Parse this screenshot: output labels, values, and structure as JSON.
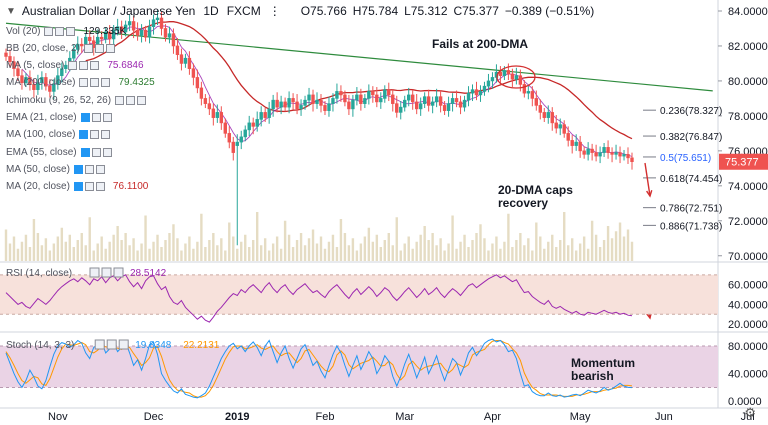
{
  "header": {
    "symbol": "Australian Dollar / Japanese Yen",
    "interval": "1D",
    "exchange": "FXCM",
    "open": "O75.766",
    "high": "H75.784",
    "low": "L75.312",
    "close": "C75.377",
    "change": "−0.389 (−0.51%)",
    "collapse_icon": "chevron-down-icon"
  },
  "indicators": [
    {
      "label": "Vol (20)",
      "value": "129.335K",
      "value_color": "#131722"
    },
    {
      "label": "BB (20, close, 2)",
      "value": "",
      "value_color": "#131722"
    },
    {
      "label": "MA (5, close)",
      "value": "75.6846",
      "value_color": "#9c27b0"
    },
    {
      "label": "MA (200, close)",
      "value": "79.4325",
      "value_color": "#2e7d32"
    },
    {
      "label": "Ichimoku (9, 26, 52, 26)",
      "value": "",
      "value_color": "#131722"
    },
    {
      "label": "EMA (21, close)",
      "value": "",
      "value_color": "#131722"
    },
    {
      "label": "MA (100, close)",
      "value": "",
      "value_color": "#131722"
    },
    {
      "label": "EMA (55, close)",
      "value": "",
      "value_color": "#131722"
    },
    {
      "label": "MA (50, close)",
      "value": "",
      "value_color": "#131722"
    },
    {
      "label": "MA (20, close)",
      "value": "76.1100",
      "value_color": "#c62828"
    }
  ],
  "annotations": {
    "fails_200dma": "Fails at 200-DMA",
    "dma20_caps_line1": "20-DMA caps",
    "dma20_caps_line2": "recovery",
    "momentum_line1": "Momentum",
    "momentum_line2": "bearish"
  },
  "colors": {
    "up": "#26a69a",
    "down": "#ef5350",
    "candle_up_fill": "#ffffff",
    "candle_up_border": "#26a69a",
    "ma20": "#c62828",
    "ma200": "#2e8b3d",
    "ma5": "#9c27b0",
    "rsi_line": "#9c27b0",
    "rsi_band": "#f7e1db",
    "stoch_band": "#ead3e5",
    "stoch_k": "#2196f3",
    "stoch_d": "#ff9800",
    "last_price_bg": "#ef5350",
    "arrow": "#d32f2f"
  },
  "chart_data": {
    "type": "candlestick",
    "symbol": "AUD/JPY",
    "price_axis": {
      "ticks": [
        "84.0000",
        "82.0000",
        "80.0000",
        "78.0000",
        "76.0000",
        "74.0000",
        "72.0000",
        "70.0000"
      ],
      "min": 69.7,
      "max": 84.4
    },
    "last_price": "75.377",
    "x_axis": {
      "labels": [
        "Nov",
        "Dec",
        "2019",
        "Feb",
        "Mar",
        "Apr",
        "May",
        "Jun",
        "Jul"
      ],
      "label_positions_index": [
        13,
        37,
        58,
        80,
        100,
        122,
        144,
        165,
        186
      ]
    },
    "fibonacci": [
      {
        "label": "0.236(78.327)",
        "price": 78.327
      },
      {
        "label": "0.382(76.847)",
        "price": 76.847
      },
      {
        "label": "0.5(75.651)",
        "price": 75.651
      },
      {
        "label": "0.618(74.454)",
        "price": 74.454
      },
      {
        "label": "0.786(72.751)",
        "price": 72.751
      },
      {
        "label": "0.886(71.738)",
        "price": 71.738
      }
    ],
    "closes": [
      81.4,
      81.1,
      80.7,
      80.3,
      79.9,
      80.2,
      79.8,
      79.5,
      79.9,
      80.2,
      79.7,
      79.4,
      79.8,
      80.3,
      80.7,
      80.9,
      81.3,
      81.8,
      82.1,
      82.0,
      82.5,
      82.3,
      81.9,
      82.5,
      82.4,
      82.8,
      82.4,
      82.9,
      83.1,
      82.8,
      83.2,
      83.4,
      82.9,
      82.6,
      82.9,
      82.5,
      83.1,
      83.5,
      83.6,
      83.0,
      82.5,
      82.7,
      82.0,
      81.5,
      81.0,
      81.3,
      80.7,
      80.2,
      79.6,
      79.0,
      78.7,
      78.4,
      77.9,
      78.2,
      77.6,
      77.0,
      76.5,
      75.9,
      76.5,
      76.8,
      77.2,
      77.6,
      77.4,
      77.8,
      78.2,
      77.9,
      78.4,
      78.9,
      78.5,
      78.8,
      78.5,
      79.0,
      78.8,
      78.4,
      78.6,
      78.9,
      79.2,
      78.7,
      78.9,
      78.6,
      78.3,
      78.7,
      79.0,
      79.4,
      79.2,
      78.8,
      78.4,
      78.9,
      79.2,
      78.7,
      79.0,
      79.4,
      79.2,
      78.8,
      79.0,
      79.5,
      79.2,
      78.7,
      78.2,
      78.5,
      78.9,
      79.2,
      78.8,
      78.4,
      78.7,
      79.1,
      78.6,
      78.8,
      79.1,
      78.6,
      78.3,
      78.7,
      79.0,
      78.8,
      78.5,
      78.9,
      79.3,
      79.5,
      79.2,
      79.4,
      79.7,
      80.0,
      80.2,
      80.5,
      80.3,
      80.6,
      80.4,
      80.1,
      80.3,
      79.8,
      79.3,
      79.4,
      79.0,
      78.6,
      78.2,
      77.9,
      78.2,
      77.6,
      77.3,
      77.5,
      77.0,
      76.6,
      76.3,
      76.5,
      76.0,
      75.8,
      76.1,
      75.9,
      75.7,
      75.9,
      76.2,
      75.9,
      75.8,
      75.9,
      75.7,
      75.8,
      75.6,
      75.38
    ],
    "flash_crash": {
      "index": 58,
      "low": 70.6,
      "open": 76.3
    },
    "ma20": {
      "start": 20,
      "label": "MA (20, close)"
    },
    "ma200": {
      "from": [
        0,
        83.3
      ],
      "to": [
        178,
        79.43
      ],
      "label": "MA (200, close)"
    },
    "rsi": {
      "ticks": [
        "60.0000",
        "40.0000",
        "20.0000"
      ],
      "band": [
        70,
        30
      ],
      "last": "28.5142",
      "min": 14,
      "max": 80,
      "values": [
        52,
        48,
        44,
        40,
        42,
        38,
        36,
        41,
        46,
        43,
        40,
        44,
        49,
        54,
        58,
        61,
        64,
        66,
        63,
        67,
        64,
        60,
        66,
        64,
        68,
        62,
        67,
        69,
        64,
        68,
        70,
        63,
        58,
        62,
        56,
        64,
        68,
        69,
        61,
        55,
        58,
        48,
        42,
        40,
        44,
        37,
        33,
        29,
        25,
        28,
        24,
        22,
        27,
        33,
        37,
        42,
        47,
        51,
        49,
        55,
        52,
        57,
        60,
        56,
        52,
        58,
        62,
        56,
        52,
        57,
        60,
        54,
        50,
        55,
        58,
        61,
        56,
        52,
        54,
        50,
        47,
        53,
        57,
        60,
        55,
        50,
        46,
        52,
        56,
        50,
        54,
        58,
        54,
        48,
        52,
        57,
        54,
        48,
        44,
        48,
        53,
        57,
        52,
        47,
        51,
        56,
        50,
        53,
        57,
        51,
        47,
        52,
        56,
        53,
        49,
        54,
        59,
        61,
        57,
        60,
        63,
        66,
        68,
        70,
        67,
        69,
        66,
        63,
        65,
        58,
        52,
        53,
        48,
        45,
        42,
        40,
        44,
        38,
        36,
        38,
        35,
        33,
        31,
        33,
        30,
        29,
        32,
        31,
        30,
        32,
        34,
        32,
        31,
        32,
        30,
        31,
        29,
        28.5
      ]
    },
    "stoch": {
      "ticks": [
        "80.0000",
        "40.0000",
        "0.0000"
      ],
      "band": [
        80,
        20
      ],
      "k_last": "19.8348",
      "d_last": "22.2131",
      "min": -4,
      "max": 96,
      "k": [
        70,
        55,
        40,
        28,
        20,
        30,
        45,
        35,
        22,
        18,
        30,
        50,
        68,
        80,
        85,
        83,
        78,
        82,
        88,
        84,
        70,
        62,
        78,
        82,
        86,
        70,
        76,
        84,
        72,
        78,
        86,
        70,
        52,
        60,
        45,
        62,
        82,
        86,
        68,
        40,
        30,
        22,
        15,
        12,
        18,
        10,
        8,
        6,
        5,
        8,
        12,
        22,
        35,
        48,
        62,
        72,
        80,
        84,
        76,
        80,
        72,
        80,
        86,
        78,
        66,
        80,
        88,
        72,
        56,
        70,
        80,
        62,
        48,
        62,
        76,
        82,
        68,
        52,
        58,
        44,
        34,
        52,
        68,
        80,
        70,
        52,
        36,
        52,
        66,
        46,
        58,
        72,
        62,
        40,
        50,
        66,
        58,
        36,
        22,
        36,
        54,
        68,
        52,
        34,
        48,
        64,
        40,
        52,
        66,
        46,
        30,
        46,
        62,
        56,
        38,
        52,
        70,
        78,
        66,
        74,
        84,
        88,
        90,
        86,
        88,
        82,
        72,
        74,
        62,
        40,
        22,
        24,
        14,
        10,
        8,
        8,
        12,
        8,
        7,
        9,
        6,
        7,
        9,
        10,
        8,
        12,
        16,
        14,
        12,
        15,
        20,
        16,
        18,
        22,
        26,
        22,
        20,
        19.8
      ],
      "d": [
        72,
        63,
        52,
        40,
        30,
        26,
        31,
        36,
        34,
        25,
        23,
        33,
        48,
        64,
        76,
        83,
        82,
        81,
        83,
        85,
        82,
        72,
        70,
        74,
        80,
        79,
        77,
        77,
        77,
        75,
        79,
        78,
        69,
        61,
        52,
        56,
        63,
        77,
        79,
        65,
        46,
        31,
        22,
        16,
        15,
        13,
        12,
        8,
        6,
        6,
        8,
        14,
        23,
        35,
        48,
        61,
        71,
        79,
        80,
        80,
        76,
        77,
        79,
        82,
        77,
        75,
        78,
        80,
        72,
        66,
        69,
        70,
        63,
        56,
        62,
        73,
        75,
        67,
        59,
        51,
        45,
        43,
        51,
        67,
        73,
        67,
        53,
        47,
        51,
        55,
        57,
        59,
        64,
        58,
        51,
        52,
        58,
        53,
        39,
        31,
        37,
        53,
        58,
        51,
        45,
        49,
        51,
        52,
        54,
        55,
        47,
        41,
        46,
        55,
        52,
        49,
        53,
        67,
        71,
        73,
        75,
        82,
        87,
        88,
        88,
        85,
        83,
        76,
        70,
        59,
        41,
        29,
        20,
        16,
        11,
        9,
        9,
        9,
        9,
        8,
        7,
        7,
        7,
        9,
        9,
        10,
        12,
        14,
        14,
        14,
        16,
        17,
        18,
        19,
        22,
        23,
        23,
        22.2
      ]
    },
    "volume": {
      "min": 0,
      "max": 10
    }
  }
}
